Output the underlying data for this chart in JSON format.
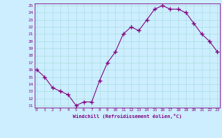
{
  "x": [
    0,
    1,
    2,
    3,
    4,
    5,
    6,
    7,
    8,
    9,
    10,
    11,
    12,
    13,
    14,
    15,
    16,
    17,
    18,
    19,
    20,
    21,
    22,
    23
  ],
  "y": [
    16.0,
    15.0,
    13.5,
    13.0,
    12.5,
    11.0,
    11.5,
    11.5,
    14.5,
    17.0,
    18.5,
    21.0,
    22.0,
    21.5,
    23.0,
    24.5,
    25.0,
    24.5,
    24.5,
    24.0,
    22.5,
    21.0,
    20.0,
    18.5
  ],
  "ylim": [
    11,
    25
  ],
  "xlim": [
    0,
    23
  ],
  "yticks": [
    11,
    12,
    13,
    14,
    15,
    16,
    17,
    18,
    19,
    20,
    21,
    22,
    23,
    24,
    25
  ],
  "xticks": [
    0,
    1,
    2,
    3,
    4,
    5,
    6,
    7,
    8,
    9,
    10,
    11,
    12,
    13,
    14,
    15,
    16,
    17,
    18,
    19,
    20,
    21,
    22,
    23
  ],
  "xlabel": "Windchill (Refroidissement éolien,°C)",
  "line_color": "#800080",
  "marker": "+",
  "marker_size": 4,
  "bg_color": "#cceeff",
  "grid_color": "#aadddd",
  "title": ""
}
